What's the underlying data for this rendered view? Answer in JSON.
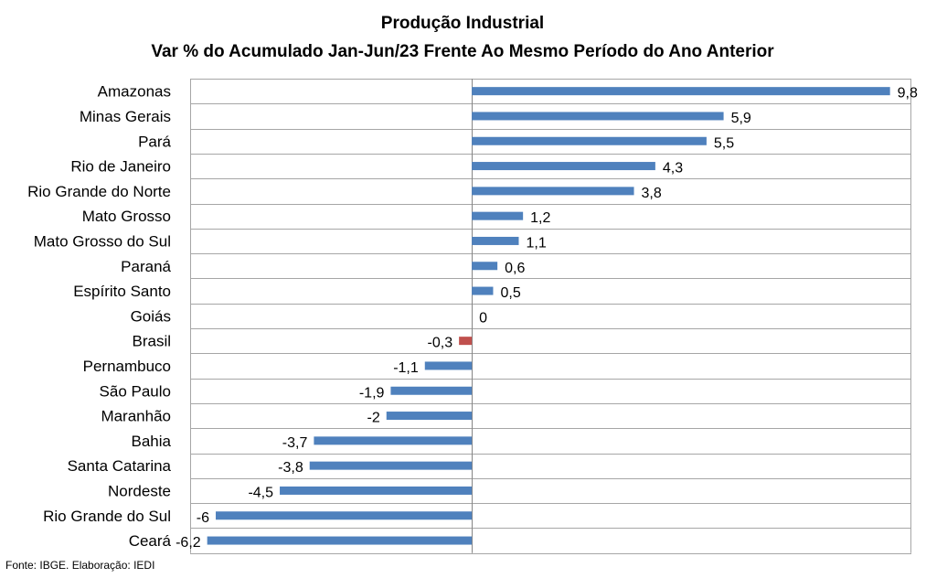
{
  "chart_data": {
    "type": "bar",
    "orientation": "horizontal",
    "title": "Produção Industrial",
    "subtitle": "Var % do Acumulado Jan-Jun/23 Frente Ao Mesmo Período do Ano Anterior",
    "categories": [
      "Amazonas",
      "Minas Gerais",
      "Pará",
      "Rio de Janeiro",
      "Rio Grande do Norte",
      "Mato Grosso",
      "Mato Grosso do Sul",
      "Paraná",
      "Espírito Santo",
      "Goiás",
      "Brasil",
      "Pernambuco",
      "São Paulo",
      "Maranhão",
      "Bahia",
      "Santa Catarina",
      "Nordeste",
      "Rio Grande do Sul",
      "Ceará"
    ],
    "values": [
      9.8,
      5.9,
      5.5,
      4.3,
      3.8,
      1.2,
      1.1,
      0.6,
      0.5,
      0,
      -0.3,
      -1.1,
      -1.9,
      -2,
      -3.7,
      -3.8,
      -4.5,
      -6,
      -6.2
    ],
    "value_labels": [
      "9,8",
      "5,9",
      "5,5",
      "4,3",
      "3,8",
      "1,2",
      "1,1",
      "0,6",
      "0,5",
      "0",
      "-0,3",
      "-1,1",
      "-1,9",
      "-2",
      "-3,7",
      "-3,8",
      "-4,5",
      "-6",
      "-6,2"
    ],
    "highlight_category": "Brasil",
    "colors": {
      "default": "#4f81bd",
      "highlight": "#c0504d"
    },
    "xlim": [
      -6.6,
      10.3
    ],
    "grid": true,
    "source": "Fonte: IBGE. Elaboração: IEDI"
  }
}
